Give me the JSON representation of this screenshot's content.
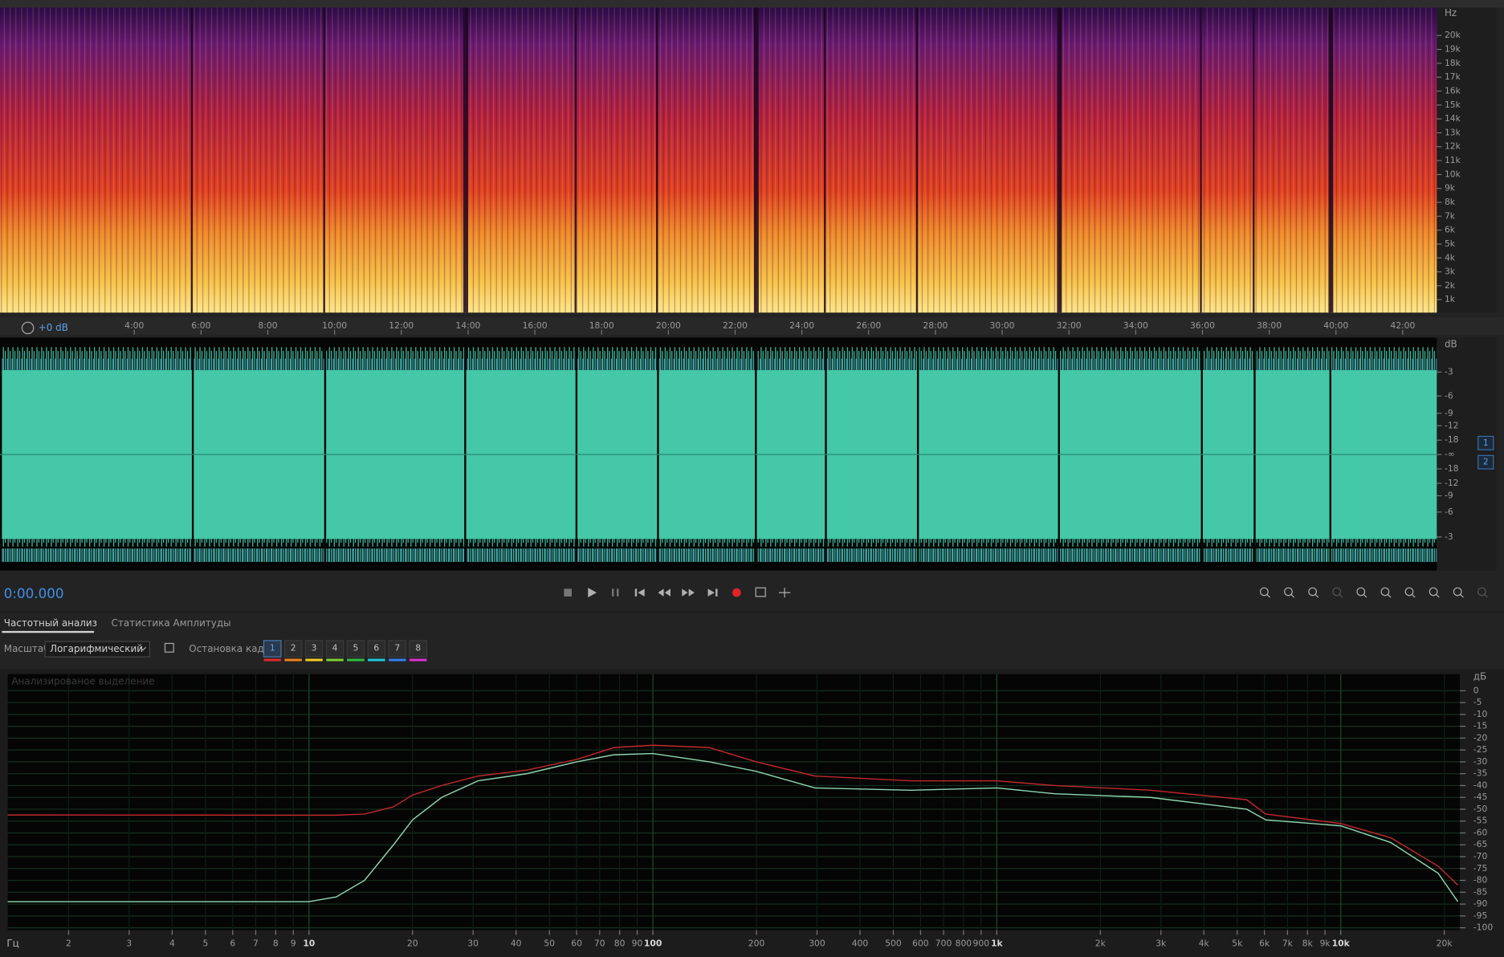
{
  "spectrogram": {
    "unit": "Hz",
    "freq_labels": [
      "20k",
      "19k",
      "18k",
      "17k",
      "16k",
      "15k",
      "14k",
      "13k",
      "12k",
      "11k",
      "10k",
      "9k",
      "8k",
      "7k",
      "6k",
      "5k",
      "4k",
      "3k",
      "2k",
      "1k"
    ]
  },
  "timeline": {
    "gain": "+0 dB",
    "times": [
      "4:00",
      "6:00",
      "8:00",
      "10:00",
      "12:00",
      "14:00",
      "16:00",
      "18:00",
      "20:00",
      "22:00",
      "24:00",
      "26:00",
      "28:00",
      "30:00",
      "32:00",
      "34:00",
      "36:00",
      "38:00",
      "40:00",
      "42:00"
    ]
  },
  "waveform": {
    "unit": "dB",
    "levels": [
      "-3",
      "-6",
      "-9",
      "-12",
      "-18",
      "-∞",
      "-18",
      "-12",
      "-9",
      "-6",
      "-3"
    ],
    "channels": [
      "1",
      "2"
    ]
  },
  "transport": {
    "time": "0:00.000"
  },
  "panel": {
    "tabs": [
      "Частотный анализ",
      "Статистика Амплитуды"
    ],
    "scale_label": "Масштаб:",
    "scale_value": "Логарифмический",
    "freeze_label": "Остановка кадра:",
    "freeze_buttons": [
      "1",
      "2",
      "3",
      "4",
      "5",
      "6",
      "7",
      "8"
    ]
  },
  "chart_data": {
    "type": "line",
    "subtitle": "Анализированое выделение",
    "x_label": "Гц",
    "y_label": "дБ",
    "xscale": "log",
    "grid": true,
    "x": [
      1.33,
      10,
      12,
      14.5,
      17.6,
      20,
      24.3,
      31,
      43,
      60,
      77,
      100,
      146,
      200,
      296,
      564,
      1000,
      1475,
      2800,
      5330,
      6050,
      10000,
      13960,
      19200,
      21900
    ],
    "series": [
      {
        "color": "#c0282c",
        "values": [
          -52.4,
          -52.5,
          -52.5,
          -52,
          -49,
          -44,
          -40,
          -36,
          -33.5,
          -29,
          -24,
          -23,
          -24,
          -30,
          -36,
          -38,
          -38,
          -40,
          -42,
          -46,
          -52,
          -56,
          -62,
          -74,
          -82
        ]
      },
      {
        "color": "#8fd6b0",
        "values": [
          -89,
          -89,
          -87,
          -80,
          -65,
          -54.5,
          -45,
          -38,
          -35,
          -30,
          -27,
          -26.5,
          -30,
          -34,
          -41,
          -42,
          -41,
          -43.5,
          -45,
          -50,
          -54.5,
          -57,
          -64,
          -77,
          -89
        ]
      }
    ],
    "xlim": [
      1.33,
      22200
    ],
    "xticks": [
      2,
      3,
      4,
      5,
      6,
      7,
      8,
      9,
      10,
      20,
      30,
      40,
      50,
      60,
      70,
      80,
      90,
      100,
      200,
      300,
      400,
      500,
      600,
      700,
      800,
      900,
      {
        "value": 1000,
        "label": "1k"
      },
      {
        "value": 2000,
        "label": "2k"
      },
      {
        "value": 3000,
        "label": "3k"
      },
      {
        "value": 4000,
        "label": "4k"
      },
      {
        "value": 5000,
        "label": "5k"
      },
      {
        "value": 6000,
        "label": "6k"
      },
      {
        "value": 7000,
        "label": "7k"
      },
      {
        "value": 8000,
        "label": "8k"
      },
      {
        "value": 9000,
        "label": "9k"
      },
      {
        "value": 10000,
        "label": "10k"
      },
      {
        "value": 20000,
        "label": "20k"
      }
    ],
    "ylim": [
      -101,
      7
    ],
    "yticks": [
      0,
      -5,
      -10,
      -15,
      -20,
      -25,
      -30,
      -35,
      -40,
      -45,
      -50,
      -55,
      -60,
      -65,
      -70,
      -75,
      -80,
      -85,
      -90,
      -95,
      -100
    ]
  }
}
